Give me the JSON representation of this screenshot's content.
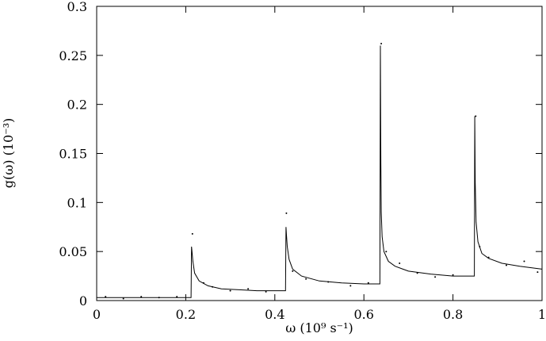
{
  "chart_data": {
    "type": "line",
    "title": "",
    "xlabel": "ω (10⁹ s⁻¹)",
    "ylabel": "g(ω) (10⁻³)",
    "xlim": [
      0,
      1
    ],
    "ylim": [
      0,
      0.3
    ],
    "x_ticks": [
      0,
      0.2,
      0.4,
      0.6,
      0.8,
      1
    ],
    "x_tick_labels": [
      "0",
      "0.2",
      "0.4",
      "0.6",
      "0.8",
      "1"
    ],
    "y_ticks": [
      0,
      0.05,
      0.1,
      0.15,
      0.2,
      0.25,
      0.3
    ],
    "y_tick_labels": [
      "0",
      "0.05",
      "0.1",
      "0.15",
      "0.2",
      "0.25",
      "0.3"
    ],
    "grid": false,
    "legend": "none",
    "series": [
      {
        "style": "line",
        "color": "#000000",
        "x": [
          0.0,
          0.05,
          0.1,
          0.15,
          0.2,
          0.212,
          0.213,
          0.214,
          0.216,
          0.22,
          0.23,
          0.25,
          0.28,
          0.32,
          0.36,
          0.4,
          0.424,
          0.425,
          0.426,
          0.428,
          0.432,
          0.44,
          0.46,
          0.5,
          0.55,
          0.6,
          0.636,
          0.637,
          0.638,
          0.639,
          0.641,
          0.645,
          0.655,
          0.67,
          0.7,
          0.75,
          0.8,
          0.848,
          0.849,
          0.85,
          0.852,
          0.856,
          0.865,
          0.88,
          0.91,
          0.95,
          1.0
        ],
        "y": [
          0.003,
          0.003,
          0.003,
          0.003,
          0.003,
          0.003,
          0.055,
          0.05,
          0.04,
          0.028,
          0.02,
          0.015,
          0.012,
          0.011,
          0.01,
          0.01,
          0.01,
          0.075,
          0.068,
          0.055,
          0.042,
          0.032,
          0.025,
          0.02,
          0.018,
          0.017,
          0.017,
          0.26,
          0.14,
          0.09,
          0.065,
          0.05,
          0.04,
          0.035,
          0.03,
          0.027,
          0.025,
          0.025,
          0.188,
          0.12,
          0.08,
          0.06,
          0.048,
          0.043,
          0.038,
          0.035,
          0.032
        ]
      },
      {
        "style": "points",
        "color": "#000000",
        "x": [
          0.02,
          0.06,
          0.1,
          0.14,
          0.18,
          0.215,
          0.24,
          0.26,
          0.3,
          0.34,
          0.38,
          0.426,
          0.44,
          0.47,
          0.52,
          0.57,
          0.61,
          0.639,
          0.65,
          0.68,
          0.72,
          0.76,
          0.8,
          0.851,
          0.86,
          0.88,
          0.92,
          0.96,
          0.99
        ],
        "y": [
          0.004,
          0.002,
          0.004,
          0.003,
          0.004,
          0.068,
          0.018,
          0.014,
          0.01,
          0.012,
          0.009,
          0.089,
          0.03,
          0.022,
          0.019,
          0.015,
          0.018,
          0.262,
          0.05,
          0.038,
          0.028,
          0.024,
          0.026,
          0.188,
          0.055,
          0.044,
          0.036,
          0.04,
          0.029
        ]
      }
    ]
  }
}
